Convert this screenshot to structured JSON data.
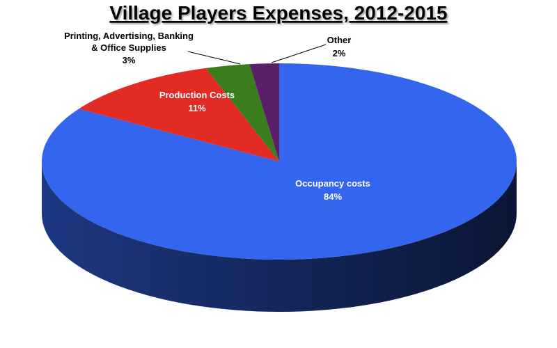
{
  "chart_data": {
    "type": "pie",
    "title": "Village Players Expenses, 2012-2015",
    "categories": [
      "Occupancy costs",
      "Production Costs",
      "Printing, Advertising, Banking & Office Supplies",
      "Other"
    ],
    "values": [
      84,
      11,
      3,
      2
    ],
    "value_labels": [
      "84%",
      "11%",
      "3%",
      "2%"
    ],
    "colors": [
      "#3465ef",
      "#e22b25",
      "#3a7d1e",
      "#5b1f68"
    ]
  }
}
